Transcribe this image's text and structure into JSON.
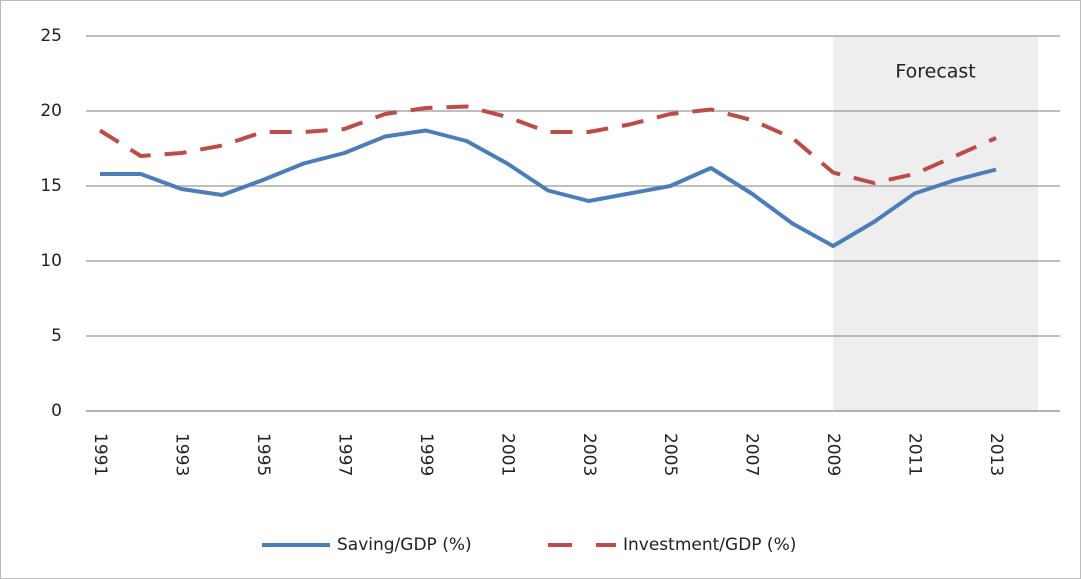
{
  "chart_data": {
    "type": "line",
    "categories": [
      "1991",
      null,
      "1993",
      null,
      "1995",
      null,
      "1997",
      null,
      "1999",
      null,
      "2001",
      null,
      "2003",
      null,
      "2005",
      null,
      "2007",
      null,
      "2009",
      null,
      "2011",
      null,
      "2013"
    ],
    "series": [
      {
        "name": "Saving/GDP (%)",
        "color": "#4a7ebb",
        "dash": false,
        "values": [
          15.8,
          15.8,
          14.8,
          14.4,
          15.4,
          16.5,
          17.2,
          18.3,
          18.7,
          18.0,
          16.5,
          14.7,
          14.0,
          14.5,
          15.0,
          16.2,
          14.5,
          12.5,
          11.0,
          12.6,
          14.5,
          15.4,
          16.1
        ]
      },
      {
        "name": "Investment/GDP (%)",
        "color": "#be4b48",
        "dash": true,
        "values": [
          18.7,
          17.0,
          17.2,
          17.7,
          18.6,
          18.6,
          18.8,
          19.8,
          20.2,
          20.3,
          19.6,
          18.6,
          18.6,
          19.1,
          19.8,
          20.1,
          19.4,
          18.2,
          15.9,
          15.2,
          15.8,
          17.0,
          18.2
        ]
      }
    ],
    "ylim": [
      0,
      25
    ],
    "yticks": [
      0,
      5,
      10,
      15,
      20,
      25
    ],
    "grid": true,
    "annotation": "Forecast",
    "shade_from": "2009",
    "shade_color": "#eeeeee",
    "legend": "bottom"
  }
}
